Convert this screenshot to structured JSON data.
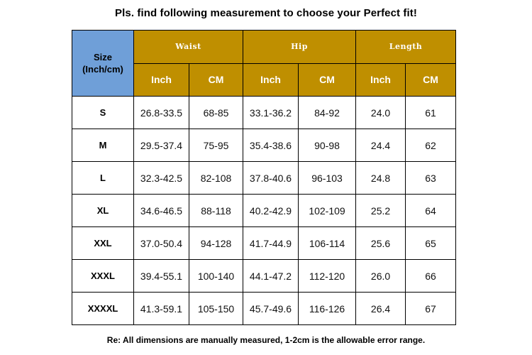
{
  "title": "Pls. find following measurement to choose your Perfect fit!",
  "table": {
    "size_header_line1": "Size",
    "size_header_line2": "(Inch/cm)",
    "groups": [
      "Waist",
      "Hip",
      "Length"
    ],
    "units": [
      "Inch",
      "CM",
      "Inch",
      "CM",
      "Inch",
      "CM"
    ],
    "rows": [
      {
        "size": "S",
        "cells": [
          "26.8-33.5",
          "68-85",
          "33.1-36.2",
          "84-92",
          "24.0",
          "61"
        ]
      },
      {
        "size": "M",
        "cells": [
          "29.5-37.4",
          "75-95",
          "35.4-38.6",
          "90-98",
          "24.4",
          "62"
        ]
      },
      {
        "size": "L",
        "cells": [
          "32.3-42.5",
          "82-108",
          "37.8-40.6",
          "96-103",
          "24.8",
          "63"
        ]
      },
      {
        "size": "XL",
        "cells": [
          "34.6-46.5",
          "88-118",
          "40.2-42.9",
          "102-109",
          "25.2",
          "64"
        ]
      },
      {
        "size": "XXL",
        "cells": [
          "37.0-50.4",
          "94-128",
          "41.7-44.9",
          "106-114",
          "25.6",
          "65"
        ]
      },
      {
        "size": "XXXL",
        "cells": [
          "39.4-55.1",
          "100-140",
          "44.1-47.2",
          "112-120",
          "26.0",
          "66"
        ]
      },
      {
        "size": "XXXXL",
        "cells": [
          "41.3-59.1",
          "105-150",
          "45.7-49.6",
          "116-126",
          "26.4",
          "67"
        ]
      }
    ]
  },
  "note": "Re: All dimensions are manually measured, 1-2cm is the allowable error range.",
  "colors": {
    "size_header_bg": "#6f9fd8",
    "group_header_bg": "#bf8f00"
  }
}
